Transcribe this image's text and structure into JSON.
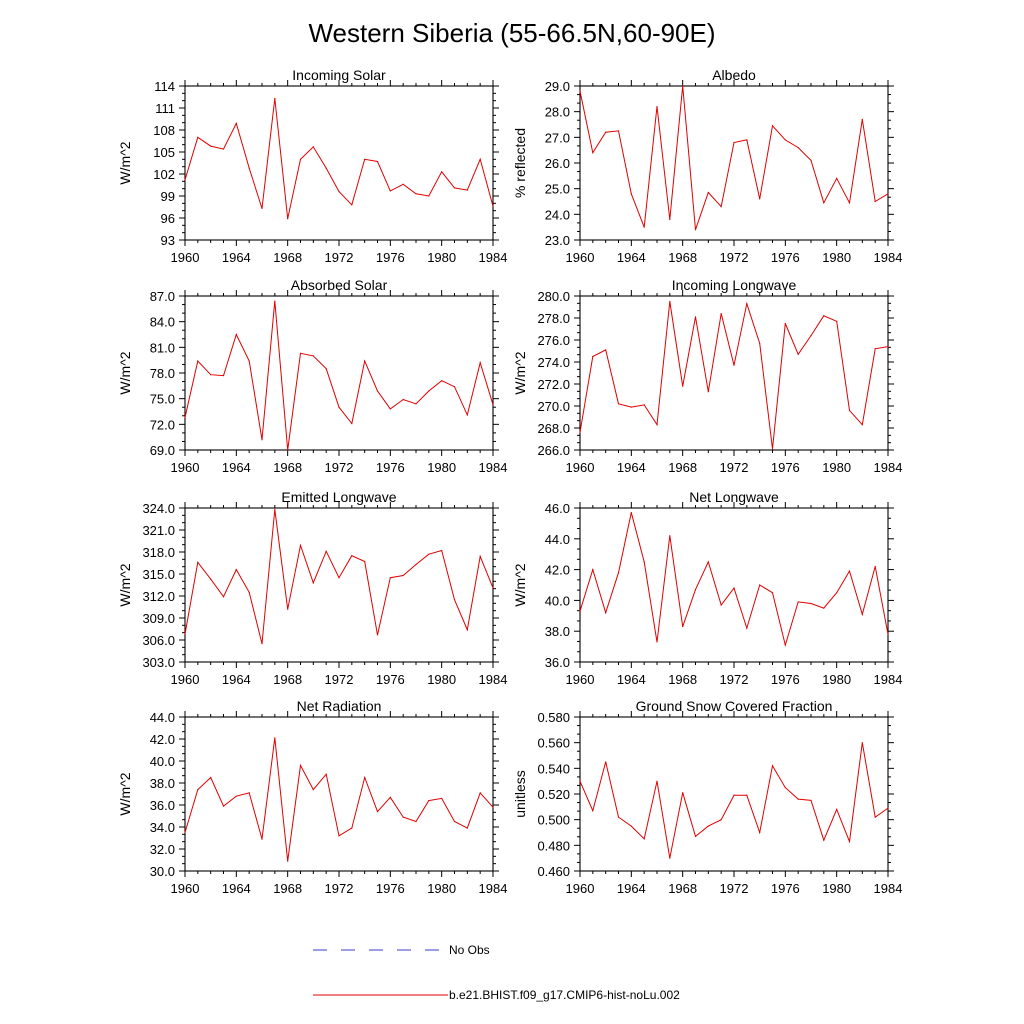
{
  "figure": {
    "title": "Western Siberia (55-66.5N,60-90E)",
    "legend": [
      {
        "label": "No Obs",
        "color": "#3b3bd6",
        "style": "dashed"
      },
      {
        "label": "b.e21.BHIST.f09_g17.CMIP6-hist-noLu.002",
        "color": "#e00000",
        "style": "solid"
      }
    ]
  },
  "chart_data": [
    {
      "type": "line",
      "title": "Incoming Solar",
      "ylabel": "W/m^2",
      "xlim": [
        1960,
        1984
      ],
      "ylim": [
        93,
        114
      ],
      "xticks": [
        1960,
        1964,
        1968,
        1972,
        1976,
        1980,
        1984
      ],
      "yticks": [
        "93",
        "96",
        "99",
        "102",
        "105",
        "108",
        "111",
        "114"
      ],
      "color": "#e00000",
      "x": [
        1960,
        1961,
        1962,
        1963,
        1964,
        1965,
        1966,
        1967,
        1968,
        1969,
        1970,
        1971,
        1972,
        1973,
        1974,
        1975,
        1976,
        1977,
        1978,
        1979,
        1980,
        1981,
        1982,
        1983,
        1984
      ],
      "y": [
        101.2,
        107.0,
        105.8,
        105.4,
        108.9,
        102.8,
        97.3,
        112.3,
        95.9,
        104.0,
        105.7,
        102.8,
        99.6,
        97.8,
        104.0,
        103.7,
        99.7,
        100.6,
        99.3,
        99.0,
        102.3,
        100.1,
        99.8,
        104.0,
        97.6
      ]
    },
    {
      "type": "line",
      "title": "Albedo",
      "ylabel": "% reflected",
      "xlim": [
        1960,
        1984
      ],
      "ylim": [
        23.0,
        29.0
      ],
      "xticks": [
        1960,
        1964,
        1968,
        1972,
        1976,
        1980,
        1984
      ],
      "yticks": [
        "23.0",
        "24.0",
        "25.0",
        "26.0",
        "27.0",
        "28.0",
        "29.0"
      ],
      "color": "#e00000",
      "x": [
        1960,
        1961,
        1962,
        1963,
        1964,
        1965,
        1966,
        1967,
        1968,
        1969,
        1970,
        1971,
        1972,
        1973,
        1974,
        1975,
        1976,
        1977,
        1978,
        1979,
        1980,
        1981,
        1982,
        1983,
        1984
      ],
      "y": [
        28.8,
        26.4,
        27.2,
        27.25,
        24.8,
        23.5,
        28.2,
        23.8,
        29.0,
        23.4,
        24.85,
        24.3,
        26.8,
        26.9,
        24.6,
        27.45,
        26.9,
        26.6,
        26.1,
        24.45,
        25.4,
        24.45,
        27.7,
        24.5,
        24.8
      ]
    },
    {
      "type": "line",
      "title": "Absorbed Solar",
      "ylabel": "W/m^2",
      "xlim": [
        1960,
        1984
      ],
      "ylim": [
        69.0,
        87.0
      ],
      "xticks": [
        1960,
        1964,
        1968,
        1972,
        1976,
        1980,
        1984
      ],
      "yticks": [
        "69.0",
        "72.0",
        "75.0",
        "78.0",
        "81.0",
        "84.0",
        "87.0"
      ],
      "color": "#e00000",
      "x": [
        1960,
        1961,
        1962,
        1963,
        1964,
        1965,
        1966,
        1967,
        1968,
        1969,
        1970,
        1971,
        1972,
        1973,
        1974,
        1975,
        1976,
        1977,
        1978,
        1979,
        1980,
        1981,
        1982,
        1983,
        1984
      ],
      "y": [
        72.8,
        79.4,
        77.8,
        77.7,
        82.5,
        79.4,
        70.2,
        86.4,
        69.0,
        80.3,
        80.0,
        78.5,
        74.0,
        72.1,
        79.4,
        75.9,
        73.8,
        74.9,
        74.4,
        75.9,
        77.1,
        76.4,
        73.1,
        79.2,
        74.3
      ]
    },
    {
      "type": "line",
      "title": "Incoming Longwave",
      "ylabel": "W/m^2",
      "xlim": [
        1960,
        1984
      ],
      "ylim": [
        266.0,
        280.0
      ],
      "xticks": [
        1960,
        1964,
        1968,
        1972,
        1976,
        1980,
        1984
      ],
      "yticks": [
        "266.0",
        "268.0",
        "270.0",
        "272.0",
        "274.0",
        "276.0",
        "278.0",
        "280.0"
      ],
      "color": "#e00000",
      "x": [
        1960,
        1961,
        1962,
        1963,
        1964,
        1965,
        1966,
        1967,
        1968,
        1969,
        1970,
        1971,
        1972,
        1973,
        1974,
        1975,
        1976,
        1977,
        1978,
        1979,
        1980,
        1981,
        1982,
        1983,
        1984
      ],
      "y": [
        267.6,
        274.5,
        275.1,
        270.2,
        269.9,
        270.1,
        268.3,
        279.5,
        271.8,
        278.1,
        271.3,
        278.4,
        273.7,
        279.3,
        275.7,
        266.1,
        277.5,
        274.7,
        276.4,
        278.2,
        277.7,
        269.6,
        268.3,
        275.2,
        275.4
      ]
    },
    {
      "type": "line",
      "title": "Emitted Longwave",
      "ylabel": "W/m^2",
      "xlim": [
        1960,
        1984
      ],
      "ylim": [
        303.0,
        324.0
      ],
      "xticks": [
        1960,
        1964,
        1968,
        1972,
        1976,
        1980,
        1984
      ],
      "yticks": [
        "303.0",
        "306.0",
        "309.0",
        "312.0",
        "315.0",
        "318.0",
        "321.0",
        "324.0"
      ],
      "color": "#e00000",
      "x": [
        1960,
        1961,
        1962,
        1963,
        1964,
        1965,
        1966,
        1967,
        1968,
        1969,
        1970,
        1971,
        1972,
        1973,
        1974,
        1975,
        1976,
        1977,
        1978,
        1979,
        1980,
        1981,
        1982,
        1983,
        1984
      ],
      "y": [
        306.8,
        316.6,
        314.3,
        311.9,
        315.6,
        312.5,
        305.5,
        323.8,
        310.2,
        318.9,
        313.8,
        318.1,
        314.5,
        317.5,
        316.7,
        306.7,
        314.5,
        314.8,
        316.3,
        317.7,
        318.2,
        311.5,
        307.4,
        317.4,
        313.1
      ]
    },
    {
      "type": "line",
      "title": "Net Longwave",
      "ylabel": "W/m^2",
      "xlim": [
        1960,
        1984
      ],
      "ylim": [
        36.0,
        46.0
      ],
      "xticks": [
        1960,
        1964,
        1968,
        1972,
        1976,
        1980,
        1984
      ],
      "yticks": [
        "36.0",
        "38.0",
        "40.0",
        "42.0",
        "44.0",
        "46.0"
      ],
      "color": "#e00000",
      "x": [
        1960,
        1961,
        1962,
        1963,
        1964,
        1965,
        1966,
        1967,
        1968,
        1969,
        1970,
        1971,
        1972,
        1973,
        1974,
        1975,
        1976,
        1977,
        1978,
        1979,
        1980,
        1981,
        1982,
        1983,
        1984
      ],
      "y": [
        39.3,
        42.0,
        39.2,
        41.8,
        45.7,
        42.5,
        37.3,
        44.2,
        38.3,
        40.7,
        42.5,
        39.7,
        40.8,
        38.2,
        41.0,
        40.5,
        37.1,
        39.9,
        39.8,
        39.5,
        40.5,
        41.9,
        39.1,
        42.2,
        37.8
      ]
    },
    {
      "type": "line",
      "title": "Net Radiation",
      "ylabel": "W/m^2",
      "xlim": [
        1960,
        1984
      ],
      "ylim": [
        30.0,
        44.0
      ],
      "xticks": [
        1960,
        1964,
        1968,
        1972,
        1976,
        1980,
        1984
      ],
      "yticks": [
        "30.0",
        "32.0",
        "34.0",
        "36.0",
        "38.0",
        "40.0",
        "42.0",
        "44.0"
      ],
      "color": "#e00000",
      "x": [
        1960,
        1961,
        1962,
        1963,
        1964,
        1965,
        1966,
        1967,
        1968,
        1969,
        1970,
        1971,
        1972,
        1973,
        1974,
        1975,
        1976,
        1977,
        1978,
        1979,
        1980,
        1981,
        1982,
        1983,
        1984
      ],
      "y": [
        33.5,
        37.4,
        38.5,
        35.9,
        36.8,
        37.1,
        32.9,
        42.1,
        30.9,
        39.6,
        37.4,
        38.8,
        33.2,
        33.9,
        38.5,
        35.4,
        36.7,
        34.9,
        34.5,
        36.4,
        36.6,
        34.5,
        33.9,
        37.1,
        35.8
      ]
    },
    {
      "type": "line",
      "title": "Ground Snow Covered Fraction",
      "ylabel": "unitless",
      "xlim": [
        1960,
        1984
      ],
      "ylim": [
        0.46,
        0.58
      ],
      "xticks": [
        1960,
        1964,
        1968,
        1972,
        1976,
        1980,
        1984
      ],
      "yticks": [
        "0.460",
        "0.480",
        "0.500",
        "0.520",
        "0.540",
        "0.560",
        "0.580"
      ],
      "color": "#e00000",
      "x": [
        1960,
        1961,
        1962,
        1963,
        1964,
        1965,
        1966,
        1967,
        1968,
        1969,
        1970,
        1971,
        1972,
        1973,
        1974,
        1975,
        1976,
        1977,
        1978,
        1979,
        1980,
        1981,
        1982,
        1983,
        1984
      ],
      "y": [
        0.53,
        0.507,
        0.545,
        0.502,
        0.495,
        0.485,
        0.53,
        0.47,
        0.521,
        0.487,
        0.495,
        0.5,
        0.519,
        0.519,
        0.49,
        0.542,
        0.525,
        0.516,
        0.515,
        0.484,
        0.508,
        0.483,
        0.56,
        0.502,
        0.509
      ]
    }
  ]
}
